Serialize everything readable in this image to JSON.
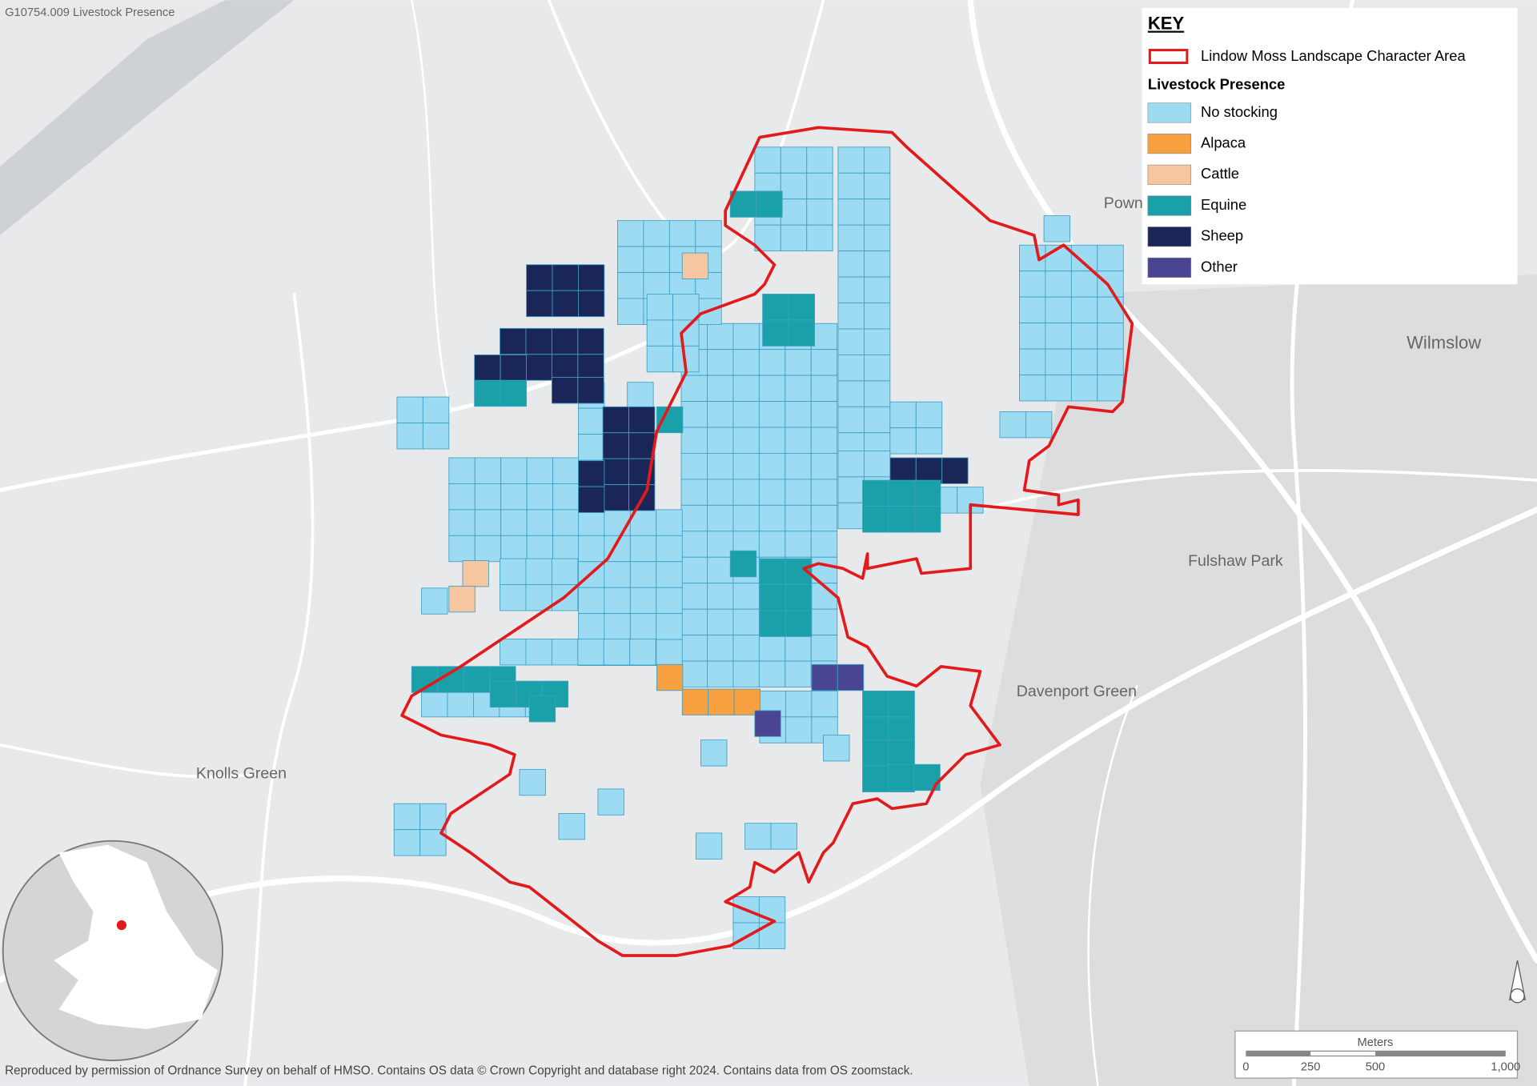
{
  "header": {
    "title": "G10754.009 Livestock Presence"
  },
  "legend": {
    "title": "KEY",
    "boundary": {
      "label": "Lindow Moss Landscape Character Area",
      "color": "#e31a1c"
    },
    "section": "Livestock Presence",
    "items": [
      {
        "label": "No stocking",
        "color": "#9ddbf3"
      },
      {
        "label": "Alpaca",
        "color": "#f7a040"
      },
      {
        "label": "Cattle",
        "color": "#f5c6a0"
      },
      {
        "label": "Equine",
        "color": "#1aa0a8"
      },
      {
        "label": "Sheep",
        "color": "#1a2657"
      },
      {
        "label": "Other",
        "color": "#4a4592"
      }
    ]
  },
  "places": [
    "Pown",
    "Wilmslow",
    "Fulshaw Park",
    "Davenport Green",
    "Knolls Green"
  ],
  "scale_bar": {
    "unit": "Meters",
    "labels": [
      "0",
      "250",
      "500",
      "1,000"
    ]
  },
  "footer": "Reproduced by permission of Ordnance Survey on behalf of HMSO. Contains OS data © Crown Copyright and database right 2024. Contains data from OS zoomstack."
}
